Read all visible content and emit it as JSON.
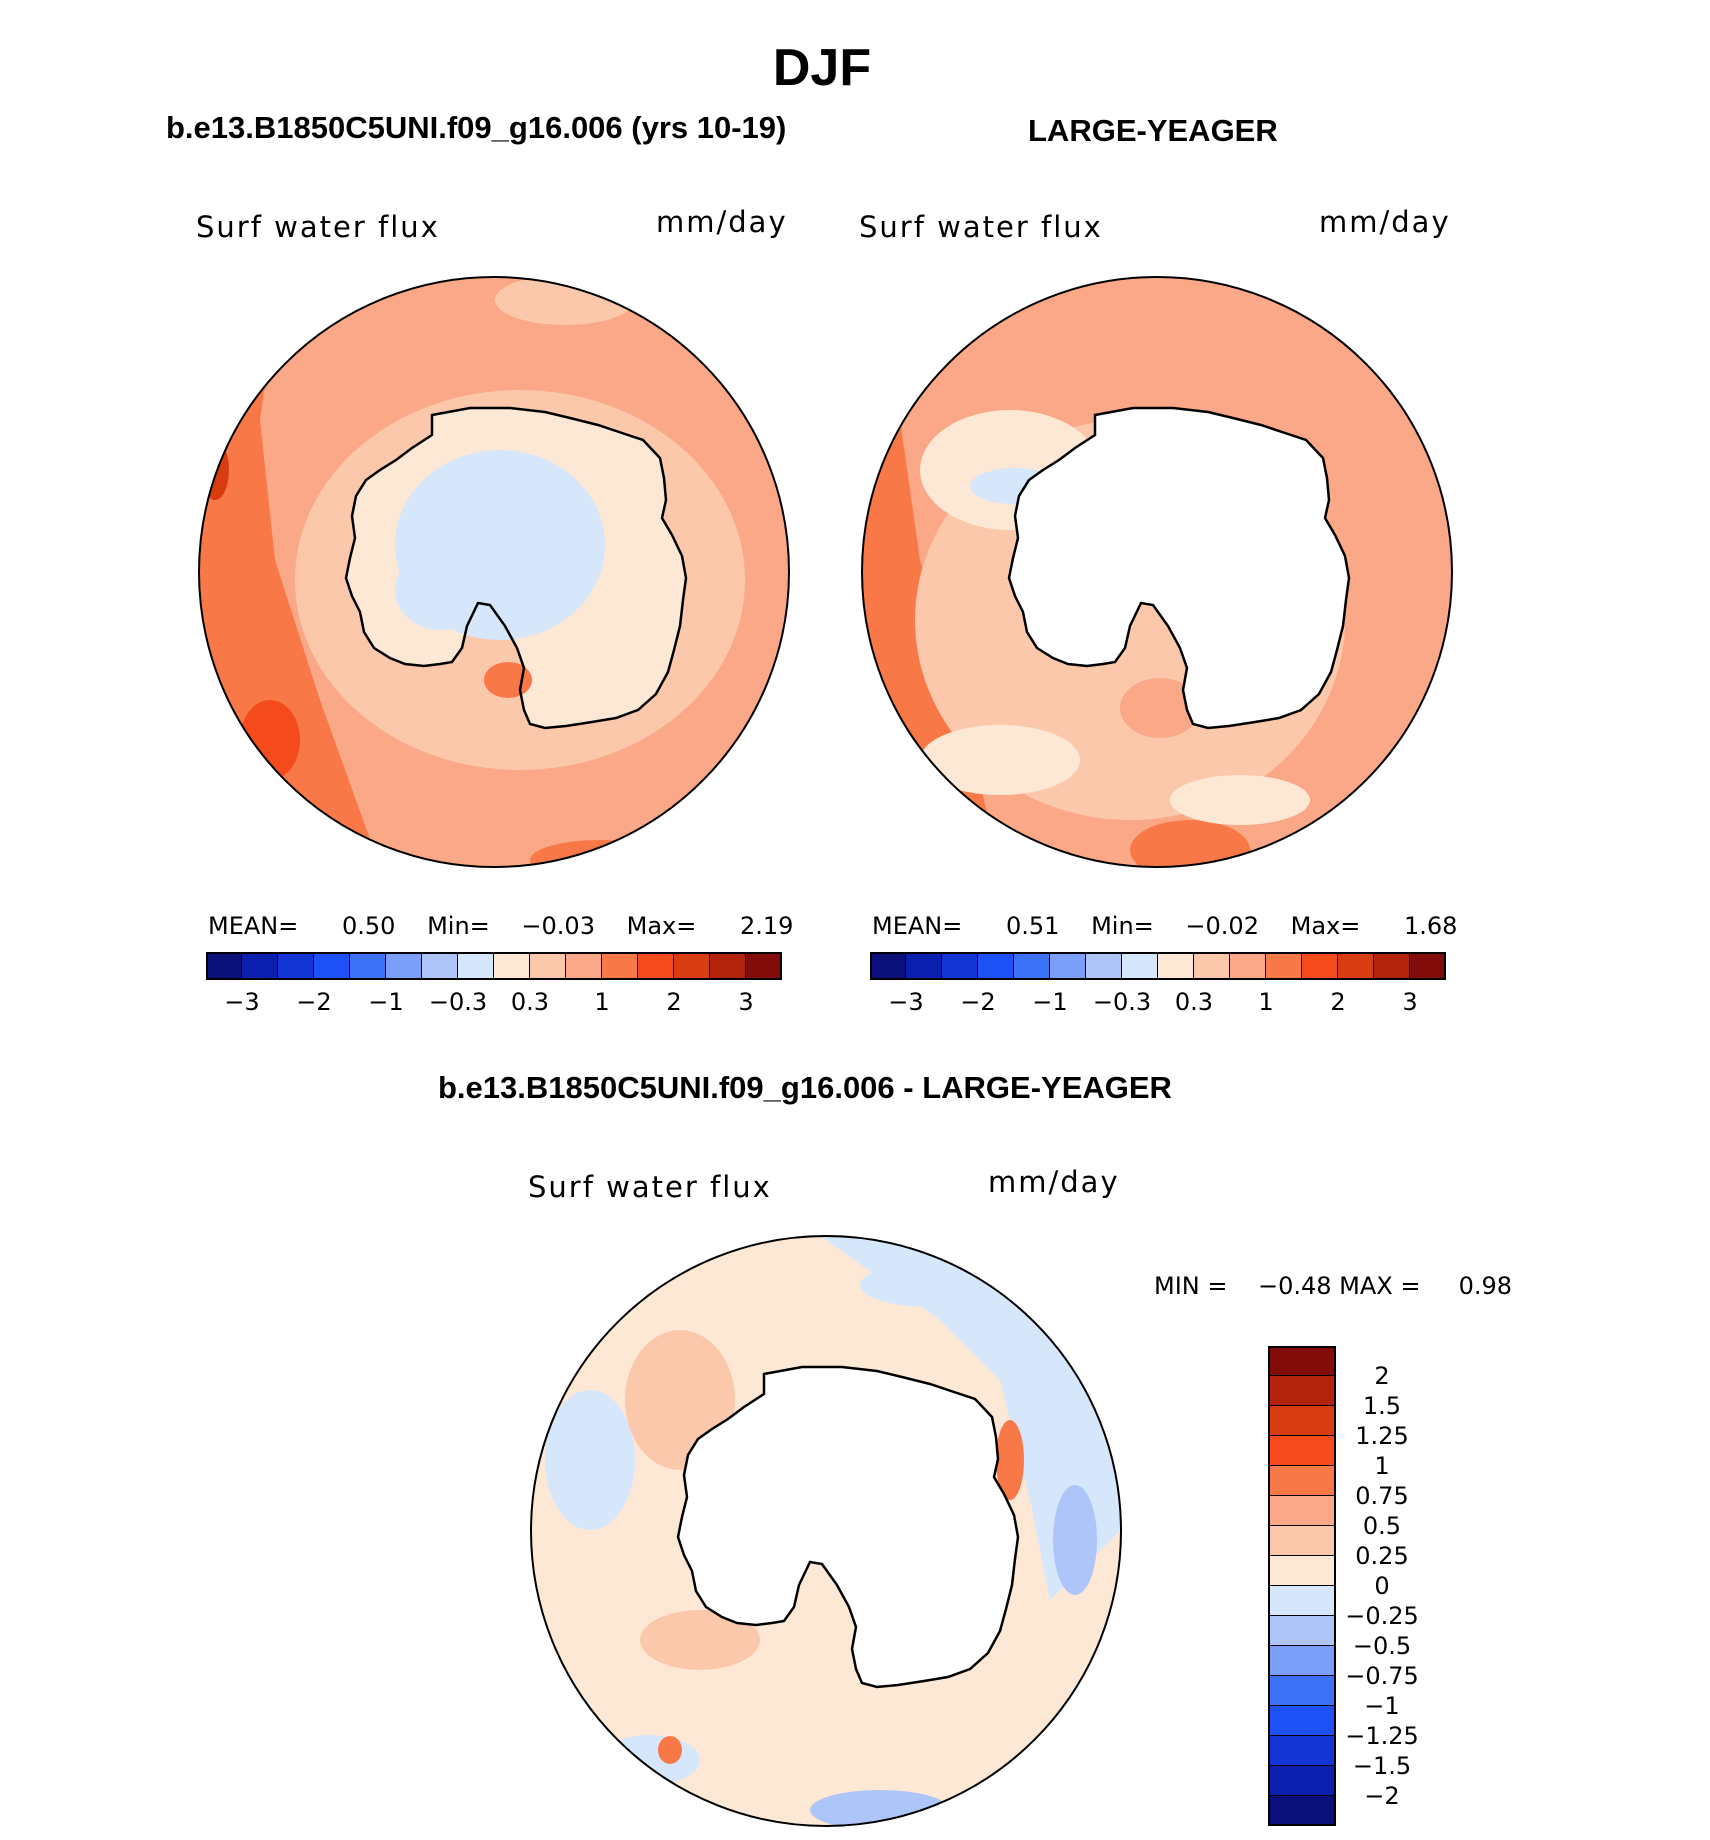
{
  "page": {
    "title": "DJF",
    "subtitle_left": "b.e13.B1850C5UNI.f09_g16.006 (yrs 10-19)",
    "subtitle_right": "LARGE-YEAGER",
    "diff_title": "b.e13.B1850C5UNI.f09_g16.006 - LARGE-YEAGER"
  },
  "panels": {
    "model": {
      "variable": "Surf water flux",
      "units": "mm/day",
      "mean_label": "MEAN=",
      "mean_value": "0.50",
      "min_label": "Min=",
      "min_value": "−0.03",
      "max_label": "Max=",
      "max_value": "2.19"
    },
    "obs": {
      "variable": "Surf water flux",
      "units": "mm/day",
      "mean_label": "MEAN=",
      "mean_value": "0.51",
      "min_label": "Min=",
      "min_value": "−0.02",
      "max_label": "Max=",
      "max_value": "1.68"
    },
    "diff": {
      "variable": "Surf water flux",
      "units": "mm/day",
      "minmax_text": "MIN =    −0.48 MAX =     0.98"
    }
  },
  "colorbar_main": {
    "colors": [
      "#0b0f7a",
      "#0b1fae",
      "#1335d6",
      "#1d50f5",
      "#3c72f7",
      "#7b9ff8",
      "#aec5fa",
      "#d6e6fb",
      "#fde8d6",
      "#fcc8ab",
      "#fba888",
      "#f97847",
      "#f54a1b",
      "#d73d10",
      "#b3230c",
      "#820c09"
    ],
    "labels": [
      "−3",
      "−2",
      "−1",
      "−0.3",
      "0.3",
      "1",
      "2",
      "3"
    ]
  },
  "colorbar_diff": {
    "colors": [
      "#820c09",
      "#b3230c",
      "#d73d10",
      "#f54a1b",
      "#f97847",
      "#fba888",
      "#fcc8ab",
      "#fde8d6",
      "#d6e6fb",
      "#aec5fa",
      "#7b9ff8",
      "#3c72f7",
      "#1d50f5",
      "#1335d6",
      "#0b1fae",
      "#0b0f7a"
    ],
    "labels": [
      "2",
      "1.5",
      "1.25",
      "1",
      "0.75",
      "0.5",
      "0.25",
      "0",
      "−0.25",
      "−0.5",
      "−0.75",
      "−1",
      "−1.25",
      "−1.5",
      "−2"
    ]
  }
}
